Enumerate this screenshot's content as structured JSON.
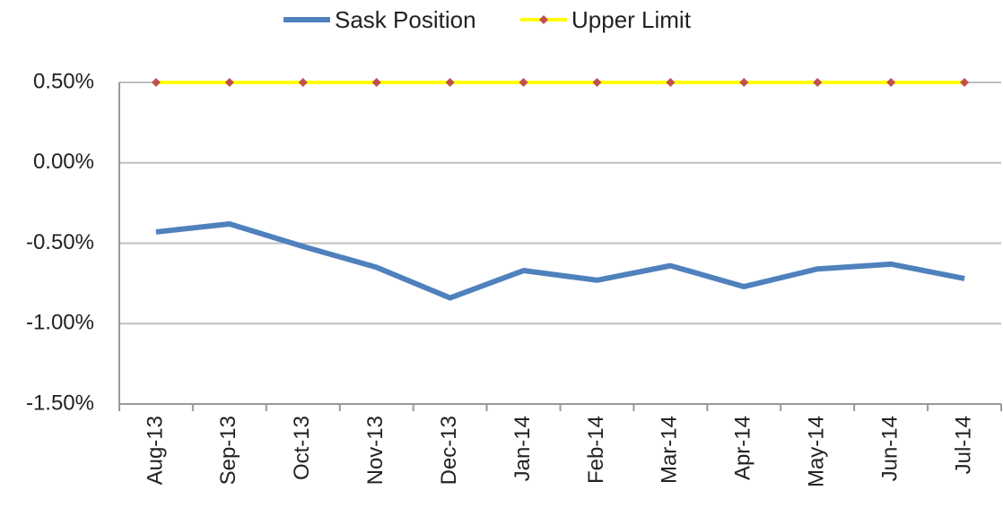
{
  "chart_data": {
    "type": "line",
    "categories": [
      "Aug-13",
      "Sep-13",
      "Oct-13",
      "Nov-13",
      "Dec-13",
      "Jan-14",
      "Feb-14",
      "Mar-14",
      "Apr-14",
      "May-14",
      "Jun-14",
      "Jul-14"
    ],
    "series": [
      {
        "name": "Sask Position",
        "color": "#4f81bd",
        "values": [
          -0.43,
          -0.38,
          -0.52,
          -0.65,
          -0.84,
          -0.67,
          -0.73,
          -0.64,
          -0.77,
          -0.66,
          -0.63,
          -0.72
        ]
      },
      {
        "name": "Upper Limit",
        "color": "#ffff00",
        "marker_color": "#c0504d",
        "values": [
          0.5,
          0.5,
          0.5,
          0.5,
          0.5,
          0.5,
          0.5,
          0.5,
          0.5,
          0.5,
          0.5,
          0.5
        ]
      }
    ],
    "ylim": [
      -1.5,
      0.5
    ],
    "yticks": [
      {
        "value": -1.5,
        "label": "-1.50%"
      },
      {
        "value": -1.0,
        "label": "-1.00%"
      },
      {
        "value": -0.5,
        "label": "-0.50%"
      },
      {
        "value": 0.0,
        "label": "0.00%"
      },
      {
        "value": 0.5,
        "label": "0.50%"
      }
    ],
    "grid": true,
    "legend": "top"
  }
}
